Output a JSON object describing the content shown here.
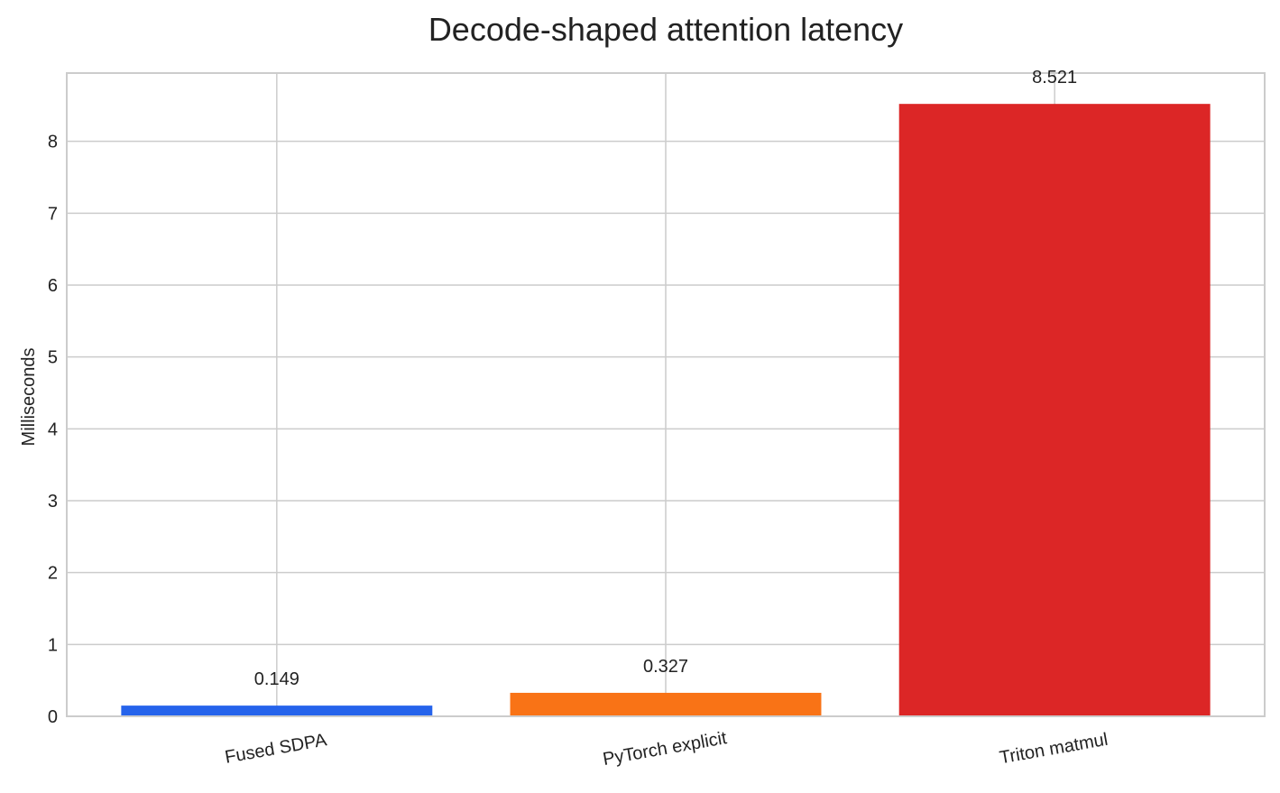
{
  "chart_data": {
    "type": "bar",
    "title": "Decode-shaped attention latency",
    "xlabel": "",
    "ylabel": "Milliseconds",
    "categories": [
      "Fused SDPA",
      "PyTorch explicit",
      "Triton matmul"
    ],
    "values": [
      0.149,
      0.327,
      8.521
    ],
    "value_labels": [
      "0.149",
      "0.327",
      "8.521"
    ],
    "colors": [
      "#2563eb",
      "#f97316",
      "#dc2626"
    ],
    "ylim": [
      0,
      8.95
    ],
    "yticks": [
      0,
      1,
      2,
      3,
      4,
      5,
      6,
      7,
      8
    ],
    "grid": true,
    "legend": null
  }
}
